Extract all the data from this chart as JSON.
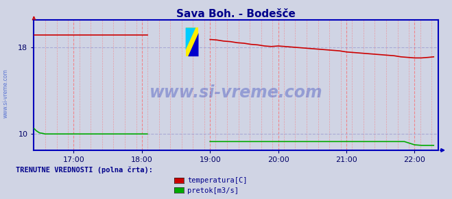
{
  "title": "Sava Boh. - Bodešče",
  "title_color": "#00008B",
  "bg_color": "#d0d4e4",
  "plot_bg_color": "#d0d4e4",
  "border_color": "#0000bb",
  "watermark_text": "www.si-vreme.com",
  "watermark_color": "#3344bb",
  "watermark_alpha": 0.38,
  "sidebar_text": "www.si-vreme.com",
  "sidebar_color": "#3355cc",
  "xlabel_color": "#000066",
  "xticks": [
    17.0,
    18.0,
    19.0,
    20.0,
    21.0,
    22.0
  ],
  "xtick_labels": [
    "17:00",
    "18:00",
    "19:00",
    "20:00",
    "21:00",
    "22:00"
  ],
  "ylim": [
    8.5,
    20.5
  ],
  "yticks": [
    10,
    18
  ],
  "xlim_start": 16.417,
  "xlim_end": 22.35,
  "temp_color": "#cc0000",
  "flow_color": "#00aa00",
  "legend_title": "TRENUTNE VREDNOSTI (polna črta):",
  "legend_title_color": "#00008B",
  "legend_items": [
    "temperatura[C]",
    "pretok[m3/s]"
  ],
  "legend_colors": [
    "#cc0000",
    "#00aa00"
  ],
  "grid_color_v": "#ff6666",
  "grid_color_h": "#9999cc",
  "temp_x1": [
    16.42,
    16.45,
    16.5,
    16.6,
    16.7,
    16.8,
    16.9,
    17.0,
    17.1,
    17.2,
    17.3,
    17.4,
    17.5,
    17.6,
    17.7,
    17.8,
    17.9,
    18.0,
    18.08
  ],
  "temp_y1": [
    19.1,
    19.1,
    19.1,
    19.1,
    19.1,
    19.1,
    19.1,
    19.1,
    19.1,
    19.1,
    19.1,
    19.1,
    19.1,
    19.1,
    19.1,
    19.1,
    19.1,
    19.1,
    19.1
  ],
  "temp_x2": [
    19.0,
    19.1,
    19.2,
    19.3,
    19.4,
    19.5,
    19.6,
    19.7,
    19.8,
    19.9,
    20.0,
    20.1,
    20.2,
    20.3,
    20.4,
    20.5,
    20.6,
    20.7,
    20.8,
    20.9,
    21.0,
    21.1,
    21.2,
    21.3,
    21.4,
    21.5,
    21.6,
    21.7,
    21.8,
    21.9,
    22.0,
    22.1,
    22.2,
    22.28
  ],
  "temp_y2": [
    18.7,
    18.65,
    18.55,
    18.5,
    18.4,
    18.35,
    18.25,
    18.2,
    18.1,
    18.05,
    18.1,
    18.05,
    18.0,
    17.95,
    17.9,
    17.85,
    17.8,
    17.75,
    17.7,
    17.65,
    17.55,
    17.5,
    17.45,
    17.4,
    17.35,
    17.3,
    17.25,
    17.2,
    17.1,
    17.05,
    17.0,
    17.0,
    17.05,
    17.1
  ],
  "flow_x1": [
    16.42,
    16.45,
    16.5,
    16.55,
    16.58,
    16.6,
    16.7,
    16.8,
    16.9,
    17.0,
    17.1,
    17.2,
    17.3,
    17.4,
    17.5,
    17.6,
    17.7,
    17.8,
    17.9,
    18.0,
    18.08
  ],
  "flow_y1": [
    10.5,
    10.3,
    10.1,
    10.05,
    10.0,
    10.0,
    10.0,
    10.0,
    10.0,
    10.0,
    10.0,
    10.0,
    10.0,
    10.0,
    10.0,
    10.0,
    10.0,
    10.0,
    10.0,
    10.0,
    10.0
  ],
  "flow_x2": [
    19.0,
    19.1,
    19.2,
    19.3,
    19.4,
    19.5,
    19.6,
    19.7,
    19.8,
    19.9,
    20.0,
    20.1,
    20.2,
    20.3,
    20.4,
    20.5,
    20.6,
    20.7,
    20.8,
    20.9,
    21.0,
    21.1,
    21.2,
    21.3,
    21.4,
    21.5,
    21.6,
    21.7,
    21.8,
    21.85,
    21.9,
    21.95,
    22.0,
    22.1,
    22.2,
    22.28
  ],
  "flow_y2": [
    9.3,
    9.3,
    9.3,
    9.3,
    9.3,
    9.3,
    9.3,
    9.3,
    9.3,
    9.3,
    9.3,
    9.3,
    9.3,
    9.3,
    9.3,
    9.3,
    9.3,
    9.3,
    9.3,
    9.3,
    9.3,
    9.3,
    9.3,
    9.3,
    9.3,
    9.3,
    9.3,
    9.3,
    9.3,
    9.3,
    9.2,
    9.1,
    9.0,
    8.95,
    8.95,
    8.95
  ]
}
